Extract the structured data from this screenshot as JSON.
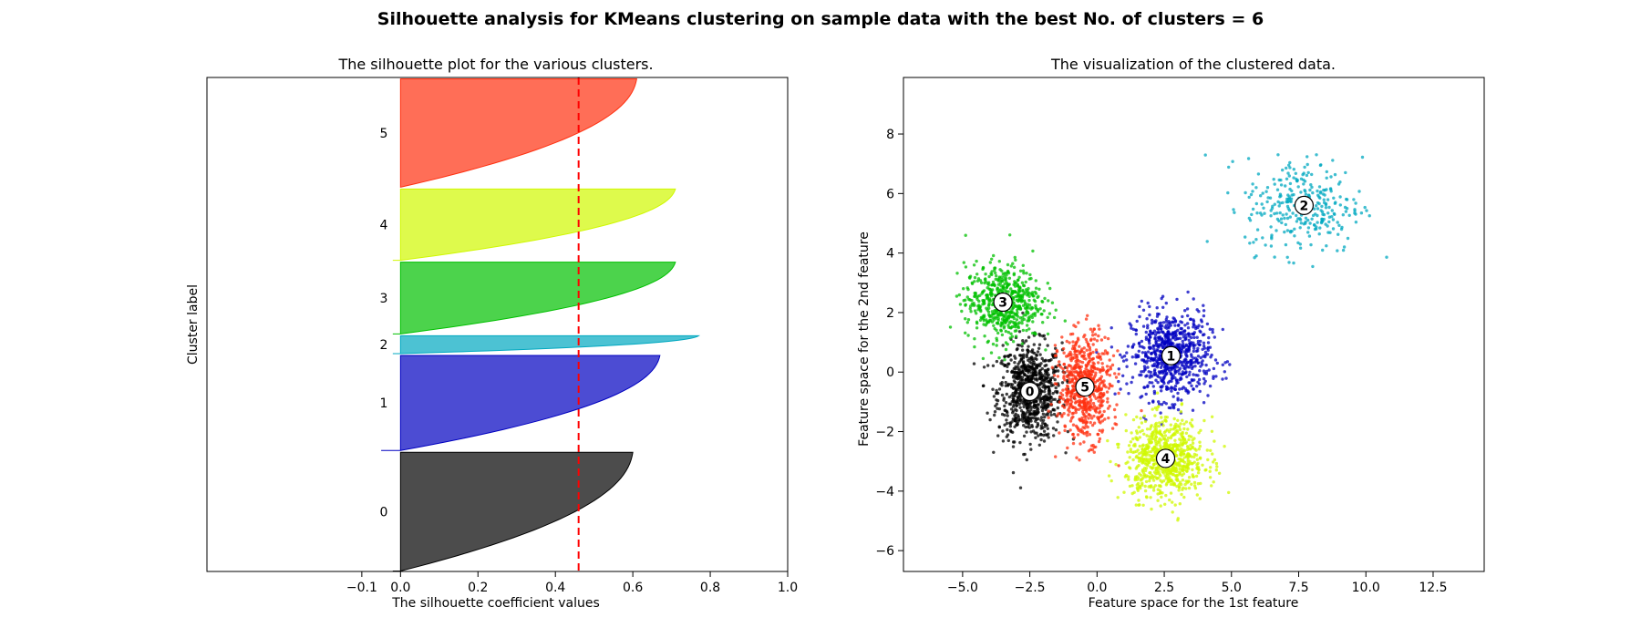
{
  "figure": {
    "suptitle": "Silhouette analysis for KMeans clustering on sample data with the best No. of clusters = 6"
  },
  "chart_data": [
    {
      "type": "area",
      "name": "silhouette-plot",
      "title": "The silhouette plot for the various clusters.",
      "xlabel": "The silhouette coefficient values",
      "ylabel": "Cluster label",
      "xlim": [
        -0.5,
        1.0
      ],
      "xticks": [
        -0.1,
        0.0,
        0.2,
        0.4,
        0.6,
        0.8,
        1.0
      ],
      "xtick_labels": [
        "−0.1",
        "0.0",
        "0.2",
        "0.4",
        "0.6",
        "0.8",
        "1.0"
      ],
      "yticks": false,
      "grid": false,
      "average_silhouette": 0.46,
      "average_line_color": "#ff0000",
      "clusters": [
        {
          "label": "0",
          "color": "#000000",
          "size_fraction": 0.244,
          "start_fraction": 0.0,
          "min_value": -0.02,
          "max_value": 0.6
        },
        {
          "label": "1",
          "color": "#0000c0",
          "size_fraction": 0.196,
          "start_fraction": 0.244,
          "min_value": -0.05,
          "max_value": 0.67
        },
        {
          "label": "2",
          "color": "#00a8c0",
          "size_fraction": 0.04,
          "start_fraction": 0.44,
          "min_value": -0.02,
          "max_value": 0.77
        },
        {
          "label": "3",
          "color": "#00c000",
          "size_fraction": 0.149,
          "start_fraction": 0.48,
          "min_value": -0.02,
          "max_value": 0.71
        },
        {
          "label": "4",
          "color": "#d0f800",
          "size_fraction": 0.148,
          "start_fraction": 0.629,
          "min_value": -0.02,
          "max_value": 0.71
        },
        {
          "label": "5",
          "color": "#ff3010",
          "size_fraction": 0.223,
          "start_fraction": 0.777,
          "min_value": 0.0,
          "max_value": 0.61
        }
      ]
    },
    {
      "type": "scatter",
      "name": "cluster-visualization",
      "title": "The visualization of the clustered data.",
      "xlabel": "Feature space for the 1st feature",
      "ylabel": "Feature space for the 2nd feature",
      "xlim": [
        -7.2,
        14.4
      ],
      "ylim": [
        -6.7,
        9.9
      ],
      "xticks": [
        -5.0,
        -2.5,
        0.0,
        2.5,
        5.0,
        7.5,
        10.0,
        12.5
      ],
      "xtick_labels": [
        "−5.0",
        "−2.5",
        "0.0",
        "2.5",
        "5.0",
        "7.5",
        "10.0",
        "12.5"
      ],
      "yticks": [
        -6,
        -4,
        -2,
        0,
        2,
        4,
        6,
        8
      ],
      "ytick_labels": [
        "−6",
        "−4",
        "−2",
        "0",
        "2",
        "4",
        "6",
        "8"
      ],
      "grid": false,
      "clusters": [
        {
          "label": "0",
          "color": "#000000",
          "center": [
            -2.5,
            -0.65
          ],
          "spread": [
            0.85,
            1.15
          ],
          "points": 800
        },
        {
          "label": "1",
          "color": "#0000c0",
          "center": [
            2.75,
            0.55
          ],
          "spread": [
            1.05,
            1.05
          ],
          "points": 750
        },
        {
          "label": "2",
          "color": "#00a8c0",
          "center": [
            7.7,
            5.6
          ],
          "spread": [
            1.55,
            1.15
          ],
          "points": 300
        },
        {
          "label": "3",
          "color": "#00c000",
          "center": [
            -3.5,
            2.35
          ],
          "spread": [
            1.0,
            0.9
          ],
          "points": 600
        },
        {
          "label": "4",
          "color": "#d0f800",
          "center": [
            2.55,
            -2.9
          ],
          "spread": [
            1.05,
            0.95
          ],
          "points": 750
        },
        {
          "label": "5",
          "color": "#ff3010",
          "center": [
            -0.45,
            -0.5
          ],
          "spread": [
            0.7,
            1.25
          ],
          "points": 650
        }
      ]
    }
  ]
}
